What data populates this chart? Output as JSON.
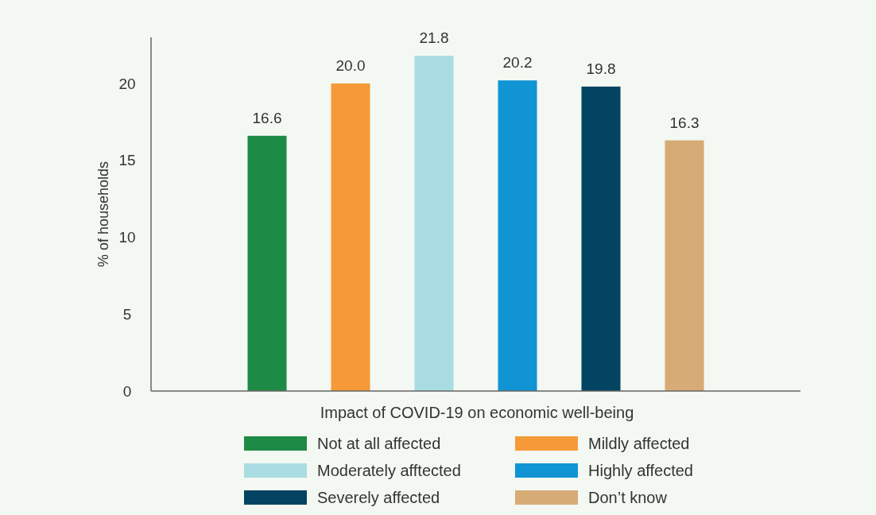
{
  "chart_data": {
    "type": "bar",
    "xlabel": "Impact of COVID-19 on economic well-being",
    "ylabel": "% of households",
    "categories": [
      null
    ],
    "series": [
      {
        "name": "Not at all affected",
        "color": "#1d8a45",
        "values": [
          16.6
        ],
        "value_labels": [
          "16.6"
        ]
      },
      {
        "name": "Mildly affected",
        "color": "#f69a38",
        "values": [
          20.0
        ],
        "value_labels": [
          "20.0"
        ]
      },
      {
        "name": "Moderately afftected",
        "color": "#aadce3",
        "values": [
          21.8
        ],
        "value_labels": [
          "21.8"
        ]
      },
      {
        "name": "Highly affected",
        "color": "#1194d3",
        "values": [
          20.2
        ],
        "value_labels": [
          "20.2"
        ]
      },
      {
        "name": "Severely affected",
        "color": "#024461",
        "values": [
          19.8
        ],
        "value_labels": [
          "19.8"
        ]
      },
      {
        "name": "Don’t know",
        "color": "#d7ab75",
        "values": [
          16.3
        ],
        "value_labels": [
          "16.3"
        ]
      }
    ],
    "ylim": [
      0,
      23
    ],
    "yticks": [
      0,
      5,
      10,
      15,
      20
    ],
    "tick_labels": "y",
    "legend": "bottom"
  }
}
